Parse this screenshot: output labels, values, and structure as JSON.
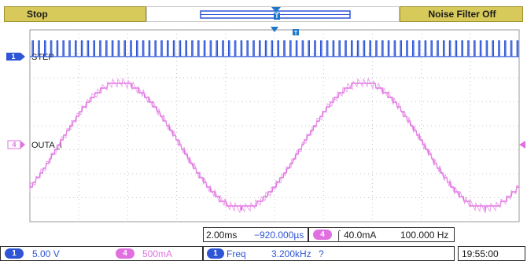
{
  "header": {
    "status": "Stop",
    "noise_filter": "Noise Filter Off"
  },
  "channels": [
    {
      "number": "1",
      "label": "STEP",
      "color": "#2e55d6"
    },
    {
      "number": "4",
      "label": "OUTA_I",
      "color": "#e070e0"
    }
  ],
  "bottom": {
    "timebase": "2.00ms",
    "delay": "−920.000µs",
    "trigger_channel": "4",
    "trigger_level": "40.0mA",
    "trigger_freq": "100.000 Hz",
    "ch1_scale": "5.00 V",
    "ch4_scale": "500mA",
    "meas_channel": "1",
    "meas_name": "Freq",
    "meas_value": "3.200kHz",
    "meas_flag": "?",
    "time": "19:55:00"
  },
  "colors": {
    "accent_yellow": "#d7c95a",
    "ch1_blue": "#2e55d6",
    "ch4_pink": "#e070e0",
    "trigger_blue": "#1f77c8"
  }
}
